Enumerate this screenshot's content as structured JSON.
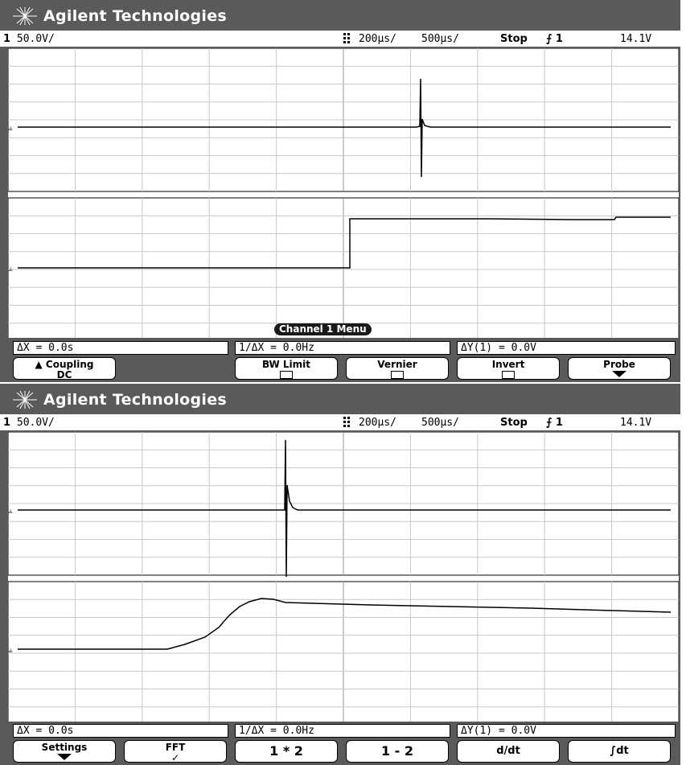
{
  "colors": {
    "bezel": "#5a5a5a",
    "trace": "#000000",
    "screen_bg": "#ffffff",
    "grid": "#c8c8c8"
  },
  "top": {
    "brand": "Agilent Technologies",
    "status": {
      "channel": "1",
      "volts_per_div": "50.0V/",
      "time_per_div": "200µs/",
      "delay": "500µs/",
      "run_state": "Stop",
      "trigger_source": "1",
      "trigger_level": "14.1V"
    },
    "menu_title": "Channel 1 Menu",
    "readouts": {
      "dx": "ΔX = 0.0s",
      "inv_dx": "1/ΔX = 0.0Hz",
      "dy": "ΔY(1) = 0.0V"
    },
    "softkeys": {
      "coupling": "Coupling",
      "coupling_value": "DC",
      "bw_limit": "BW Limit",
      "vernier": "Vernier",
      "invert": "Invert",
      "probe": "Probe"
    }
  },
  "bottom": {
    "brand": "Agilent Technologies",
    "status": {
      "channel": "1",
      "volts_per_div": "50.0V/",
      "time_per_div": "200µs/",
      "delay": "500µs/",
      "run_state": "Stop",
      "trigger_source": "1",
      "trigger_level": "14.1V"
    },
    "readouts": {
      "dx": "ΔX = 0.0s",
      "inv_dx": "1/ΔX = 0.0Hz",
      "dy": "ΔY(1) = 0.0V"
    },
    "softkeys": {
      "settings": "Settings",
      "fft": "FFT",
      "fft_mark": "✓",
      "mult": "1 * 2",
      "sub": "1 - 2",
      "ddt": "d/dt",
      "int": "∫dt"
    }
  }
}
